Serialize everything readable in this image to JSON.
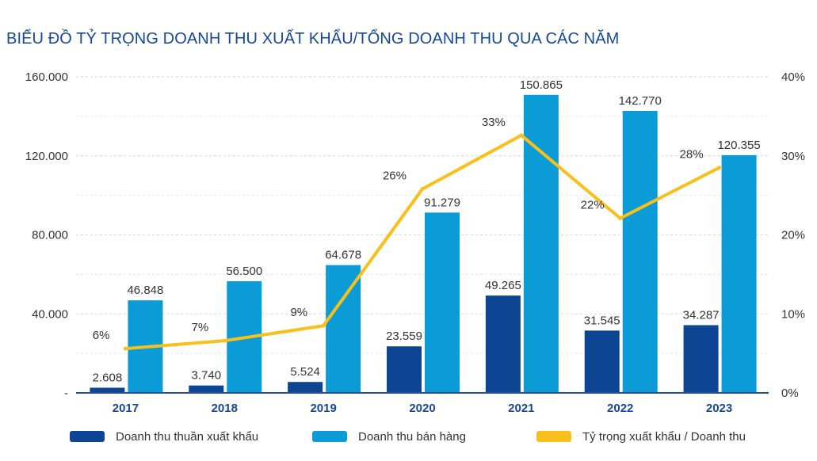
{
  "chart_data": {
    "type": "bar",
    "title": "BIỂU ĐỒ TỶ TRỌNG DOANH THU XUẤT KHẨU/TỔNG DOANH THU QUA CÁC NĂM",
    "categories": [
      "2017",
      "2018",
      "2019",
      "2020",
      "2021",
      "2022",
      "2023"
    ],
    "series": [
      {
        "name": "Doanh thu thuần xuất khẩu",
        "kind": "bar",
        "axis": "left",
        "color": "#0d4593",
        "values": [
          2608,
          3740,
          5524,
          23559,
          49265,
          31545,
          34287
        ],
        "labels": [
          "2.608",
          "3.740",
          "5.524",
          "23.559",
          "49.265",
          "31.545",
          "34.287"
        ]
      },
      {
        "name": "Doanh thu bán hàng",
        "kind": "bar",
        "axis": "left",
        "color": "#0b9bd6",
        "values": [
          46848,
          56500,
          64678,
          91279,
          150865,
          142770,
          120355
        ],
        "labels": [
          "46.848",
          "56.500",
          "64.678",
          "91.279",
          "150.865",
          "142.770",
          "120.355"
        ]
      },
      {
        "name": "Tỷ trọng xuất khẩu / Doanh thu",
        "kind": "line",
        "axis": "right",
        "color": "#f9bf1a",
        "values": [
          5.6,
          6.6,
          8.5,
          25.8,
          32.6,
          22.1,
          28.5
        ],
        "labels": [
          "6%",
          "7%",
          "9%",
          "26%",
          "33%",
          "22%",
          "28%"
        ]
      }
    ],
    "y_left": {
      "ylim": [
        0,
        160000
      ],
      "ticks": [
        0,
        40000,
        80000,
        120000,
        160000
      ],
      "tick_labels": [
        "-",
        "40.000",
        "80.000",
        "120.000",
        "160.000"
      ]
    },
    "y_right": {
      "ylim": [
        0,
        40
      ],
      "ticks": [
        0,
        10,
        20,
        30,
        40
      ],
      "tick_labels": [
        "0%",
        "10%",
        "20%",
        "30%",
        "40%"
      ]
    },
    "grid": true,
    "legend_position": "bottom"
  }
}
